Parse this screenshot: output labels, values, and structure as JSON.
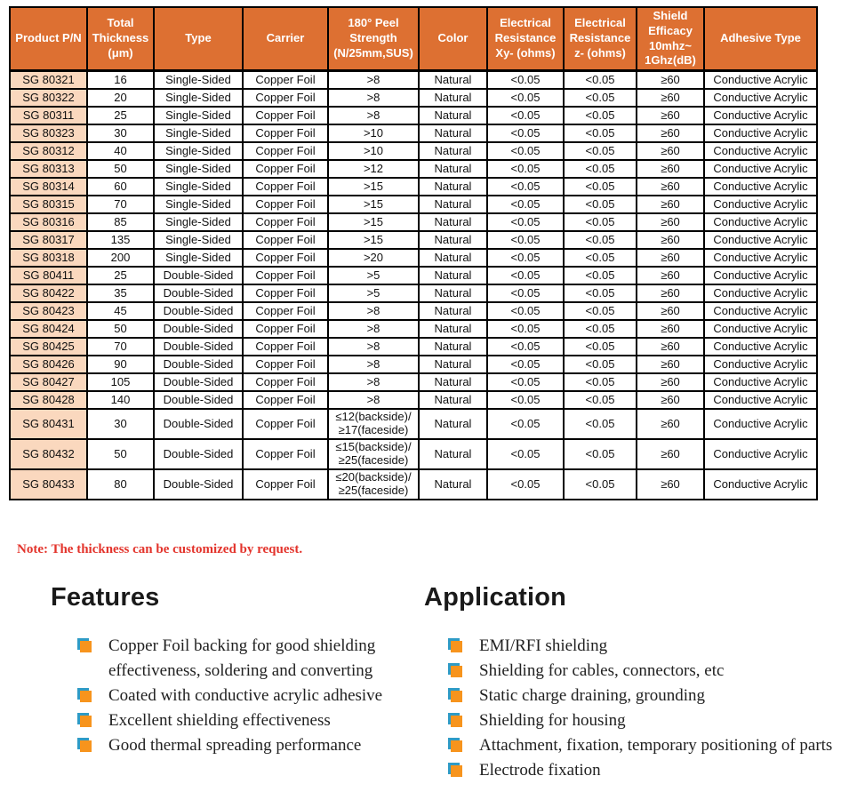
{
  "colors": {
    "header_bg": "#DD7032",
    "pn_cell_bg": "#FAD8BE",
    "note_red": "#E3342C",
    "bullet_orange": "#F7941D",
    "bullet_blue": "#2E9BC6"
  },
  "table": {
    "headers": [
      "Product P/N",
      "Total\nThickness\n(μm)",
      "Type",
      "Carrier",
      "180° Peel\nStrength\n(N/25mm,SUS)",
      "Color",
      "Electrical\nResistance\nXy- (ohms)",
      "Electrical\nResistance\nz- (ohms)",
      "Shield\nEfficacy\n10mhz~\n1Ghz(dB)",
      "Adhesive Type"
    ],
    "rows": [
      {
        "tall": false,
        "cells": [
          "SG 80321",
          "16",
          "Single-Sided",
          "Copper Foil",
          ">8",
          "Natural",
          "<0.05",
          "<0.05",
          "≥60",
          "Conductive Acrylic"
        ]
      },
      {
        "tall": false,
        "cells": [
          "SG 80322",
          "20",
          "Single-Sided",
          "Copper Foil",
          ">8",
          "Natural",
          "<0.05",
          "<0.05",
          "≥60",
          "Conductive Acrylic"
        ]
      },
      {
        "tall": false,
        "cells": [
          "SG 80311",
          "25",
          "Single-Sided",
          "Copper Foil",
          ">8",
          "Natural",
          "<0.05",
          "<0.05",
          "≥60",
          "Conductive Acrylic"
        ]
      },
      {
        "tall": false,
        "cells": [
          "SG 80323",
          "30",
          "Single-Sided",
          "Copper Foil",
          ">10",
          "Natural",
          "<0.05",
          "<0.05",
          "≥60",
          "Conductive Acrylic"
        ]
      },
      {
        "tall": false,
        "cells": [
          "SG 80312",
          "40",
          "Single-Sided",
          "Copper Foil",
          ">10",
          "Natural",
          "<0.05",
          "<0.05",
          "≥60",
          "Conductive Acrylic"
        ]
      },
      {
        "tall": false,
        "cells": [
          "SG 80313",
          "50",
          "Single-Sided",
          "Copper Foil",
          ">12",
          "Natural",
          "<0.05",
          "<0.05",
          "≥60",
          "Conductive Acrylic"
        ]
      },
      {
        "tall": false,
        "cells": [
          "SG 80314",
          "60",
          "Single-Sided",
          "Copper Foil",
          ">15",
          "Natural",
          "<0.05",
          "<0.05",
          "≥60",
          "Conductive Acrylic"
        ]
      },
      {
        "tall": false,
        "cells": [
          "SG 80315",
          "70",
          "Single-Sided",
          "Copper Foil",
          ">15",
          "Natural",
          "<0.05",
          "<0.05",
          "≥60",
          "Conductive Acrylic"
        ]
      },
      {
        "tall": false,
        "cells": [
          "SG 80316",
          "85",
          "Single-Sided",
          "Copper Foil",
          ">15",
          "Natural",
          "<0.05",
          "<0.05",
          "≥60",
          "Conductive Acrylic"
        ]
      },
      {
        "tall": false,
        "cells": [
          "SG 80317",
          "135",
          "Single-Sided",
          "Copper Foil",
          ">15",
          "Natural",
          "<0.05",
          "<0.05",
          "≥60",
          "Conductive Acrylic"
        ]
      },
      {
        "tall": false,
        "cells": [
          "SG 80318",
          "200",
          "Single-Sided",
          "Copper Foil",
          ">20",
          "Natural",
          "<0.05",
          "<0.05",
          "≥60",
          "Conductive Acrylic"
        ]
      },
      {
        "tall": false,
        "cells": [
          "SG 80411",
          "25",
          "Double-Sided",
          "Copper Foil",
          ">5",
          "Natural",
          "<0.05",
          "<0.05",
          "≥60",
          "Conductive Acrylic"
        ]
      },
      {
        "tall": false,
        "cells": [
          "SG 80422",
          "35",
          "Double-Sided",
          "Copper Foil",
          ">5",
          "Natural",
          "<0.05",
          "<0.05",
          "≥60",
          "Conductive Acrylic"
        ]
      },
      {
        "tall": false,
        "cells": [
          "SG 80423",
          "45",
          "Double-Sided",
          "Copper Foil",
          ">8",
          "Natural",
          "<0.05",
          "<0.05",
          "≥60",
          "Conductive Acrylic"
        ]
      },
      {
        "tall": false,
        "cells": [
          "SG 80424",
          "50",
          "Double-Sided",
          "Copper Foil",
          ">8",
          "Natural",
          "<0.05",
          "<0.05",
          "≥60",
          "Conductive Acrylic"
        ]
      },
      {
        "tall": false,
        "cells": [
          "SG 80425",
          "70",
          "Double-Sided",
          "Copper Foil",
          ">8",
          "Natural",
          "<0.05",
          "<0.05",
          "≥60",
          "Conductive Acrylic"
        ]
      },
      {
        "tall": false,
        "cells": [
          "SG 80426",
          "90",
          "Double-Sided",
          "Copper Foil",
          ">8",
          "Natural",
          "<0.05",
          "<0.05",
          "≥60",
          "Conductive Acrylic"
        ]
      },
      {
        "tall": false,
        "cells": [
          "SG 80427",
          "105",
          "Double-Sided",
          "Copper Foil",
          ">8",
          "Natural",
          "<0.05",
          "<0.05",
          "≥60",
          "Conductive Acrylic"
        ]
      },
      {
        "tall": false,
        "cells": [
          "SG 80428",
          "140",
          "Double-Sided",
          "Copper Foil",
          ">8",
          "Natural",
          "<0.05",
          "<0.05",
          "≥60",
          "Conductive Acrylic"
        ]
      },
      {
        "tall": true,
        "cells": [
          "SG 80431",
          "30",
          "Double-Sided",
          "Copper Foil",
          "≤12(backside)/\n≥17(faceside)",
          "Natural",
          "<0.05",
          "<0.05",
          "≥60",
          "Conductive Acrylic"
        ]
      },
      {
        "tall": true,
        "cells": [
          "SG 80432",
          "50",
          "Double-Sided",
          "Copper Foil",
          "≤15(backside)/\n≥25(faceside)",
          "Natural",
          "<0.05",
          "<0.05",
          "≥60",
          "Conductive Acrylic"
        ]
      },
      {
        "tall": true,
        "cells": [
          "SG 80433",
          "80",
          "Double-Sided",
          "Copper Foil",
          "≤20(backside)/\n≥25(faceside)",
          "Natural",
          "<0.05",
          "<0.05",
          "≥60",
          "Conductive Acrylic"
        ]
      }
    ]
  },
  "note": "Note: The thickness can be customized by request.",
  "features": {
    "title": "Features",
    "items": [
      "Copper Foil backing for good shielding effectiveness, soldering and converting",
      "Coated with conductive acrylic adhesive",
      "Excellent shielding effectiveness",
      "Good thermal spreading performance"
    ]
  },
  "application": {
    "title": "Application",
    "items": [
      "EMI/RFI shielding",
      "Shielding for cables, connectors, etc",
      "Static charge draining, grounding",
      "Shielding for housing",
      "Attachment, fixation, temporary positioning of parts",
      "Electrode fixation"
    ]
  }
}
